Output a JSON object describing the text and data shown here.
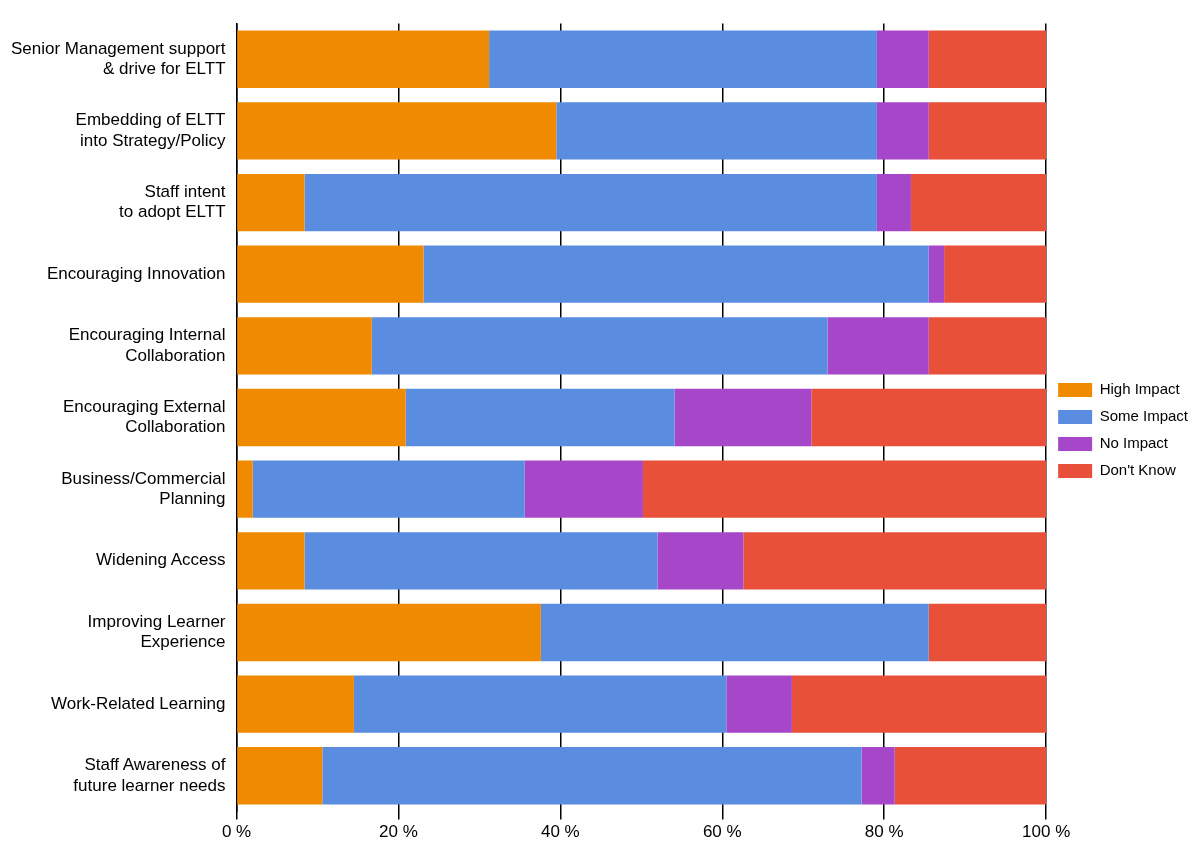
{
  "chart_data": {
    "type": "bar",
    "orientation": "horizontal",
    "stacked": true,
    "categories": [
      "Senior Management support\n& drive for ELTT",
      "Embedding of ELTT\ninto Strategy/Policy",
      "Staff intent\nto adopt ELTT",
      "Encouraging Innovation",
      "Encouraging Internal\nCollaboration",
      "Encouraging External\nCollaboration",
      "Business/Commercial\nPlanning",
      "Widening Access",
      "Improving Learner\nExperience",
      "Work-Related Learning",
      "Staff Awareness of\nfuture learner needs"
    ],
    "series": [
      {
        "name": "High Impact",
        "color": "#f08a00",
        "values": [
          31.2,
          39.5,
          8.4,
          23.1,
          16.7,
          20.9,
          2.0,
          8.4,
          37.6,
          14.5,
          10.6
        ]
      },
      {
        "name": "Some Impact",
        "color": "#5a8de0",
        "values": [
          47.9,
          39.6,
          70.7,
          62.4,
          56.3,
          33.2,
          33.6,
          43.6,
          47.9,
          46.0,
          66.6
        ]
      },
      {
        "name": "No Impact",
        "color": "#a646c8",
        "values": [
          6.4,
          6.4,
          4.2,
          1.9,
          12.5,
          16.9,
          14.6,
          10.6,
          0,
          8.1,
          4.1
        ]
      },
      {
        "name": "Don't Know",
        "color": "#e8503a",
        "values": [
          14.5,
          14.5,
          16.7,
          12.6,
          14.5,
          29.0,
          49.8,
          37.4,
          14.5,
          31.4,
          18.7
        ]
      }
    ],
    "xlim": [
      0,
      100
    ],
    "xticks": [
      {
        "value": 0,
        "label": "0 %"
      },
      {
        "value": 20,
        "label": "20 %"
      },
      {
        "value": 40,
        "label": "40 %"
      },
      {
        "value": 60,
        "label": "60 %"
      },
      {
        "value": 80,
        "label": "80 %"
      },
      {
        "value": 100,
        "label": "100 %"
      }
    ],
    "grid": "x",
    "legend": "right"
  }
}
